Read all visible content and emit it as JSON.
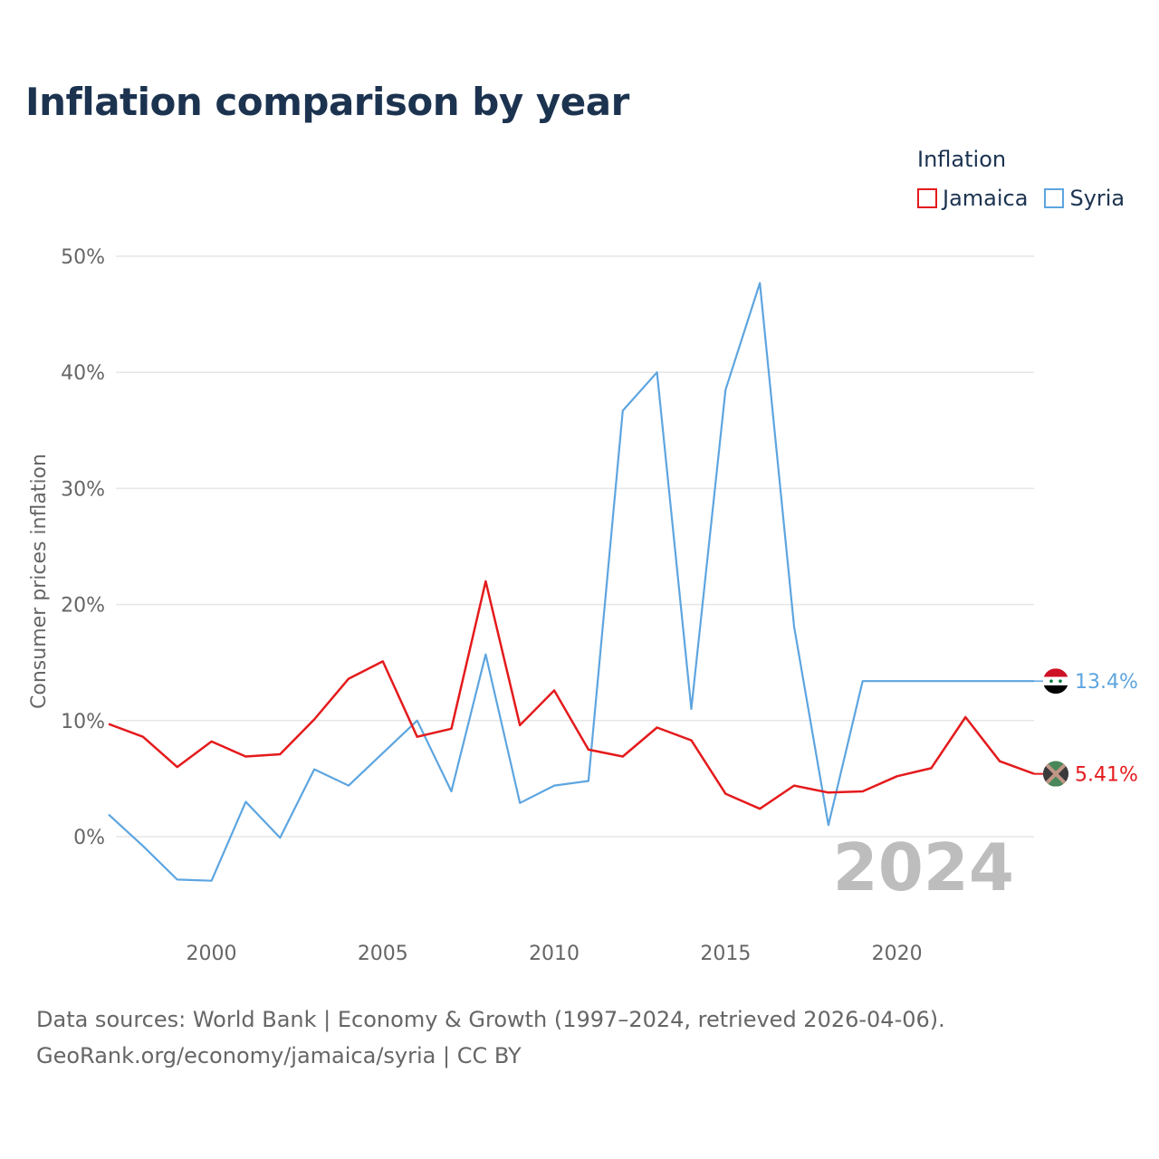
{
  "chart_data": {
    "type": "line",
    "title": "Inflation comparison by year",
    "legend_title": "Inflation",
    "ylabel": "Consumer prices inflation",
    "xlabel": "",
    "x": [
      1997,
      1998,
      1999,
      2000,
      2001,
      2002,
      2003,
      2004,
      2005,
      2006,
      2007,
      2008,
      2009,
      2010,
      2011,
      2012,
      2013,
      2014,
      2015,
      2016,
      2017,
      2018,
      2019,
      2020,
      2021,
      2022,
      2023,
      2024
    ],
    "xlim": [
      1997,
      2024
    ],
    "ylim": [
      -7,
      50
    ],
    "x_ticks": [
      2000,
      2005,
      2010,
      2015,
      2020
    ],
    "x_tick_labels": [
      "2000",
      "2005",
      "2010",
      "2015",
      "2020"
    ],
    "y_ticks": [
      0,
      10,
      20,
      30,
      40,
      50
    ],
    "y_tick_labels": [
      "0%",
      "10%",
      "20%",
      "30%",
      "40%",
      "50%"
    ],
    "grid": true,
    "legend_position": "top-right",
    "year_label": "2024",
    "series": [
      {
        "name": "Jamaica",
        "color": "#e41a1c",
        "end_label": "5.41%",
        "flag_icon": "jamaica-flag-icon",
        "values": [
          9.7,
          8.6,
          6.0,
          8.2,
          6.9,
          7.1,
          10.1,
          13.6,
          15.1,
          8.6,
          9.3,
          22.0,
          9.6,
          12.6,
          7.5,
          6.9,
          9.4,
          8.3,
          3.7,
          2.4,
          4.4,
          3.8,
          3.9,
          5.2,
          5.9,
          10.3,
          6.5,
          5.41
        ]
      },
      {
        "name": "Syria",
        "color": "#5da5e0",
        "end_label": "13.4%",
        "flag_icon": "syria-flag-icon",
        "values": [
          1.9,
          -0.8,
          -3.7,
          -3.8,
          3.0,
          -0.1,
          5.8,
          4.4,
          7.2,
          10.0,
          3.9,
          15.7,
          2.9,
          4.4,
          4.8,
          36.7,
          40.0,
          11.0,
          38.5,
          47.7,
          18.1,
          1.0,
          13.4,
          13.4,
          13.4,
          13.4,
          13.4,
          13.4
        ]
      }
    ]
  },
  "footer": {
    "line1": "Data sources: World Bank | Economy & Growth (1997–2024, retrieved 2026-04-06).",
    "line2": "GeoRank.org/economy/jamaica/syria | CC BY"
  }
}
